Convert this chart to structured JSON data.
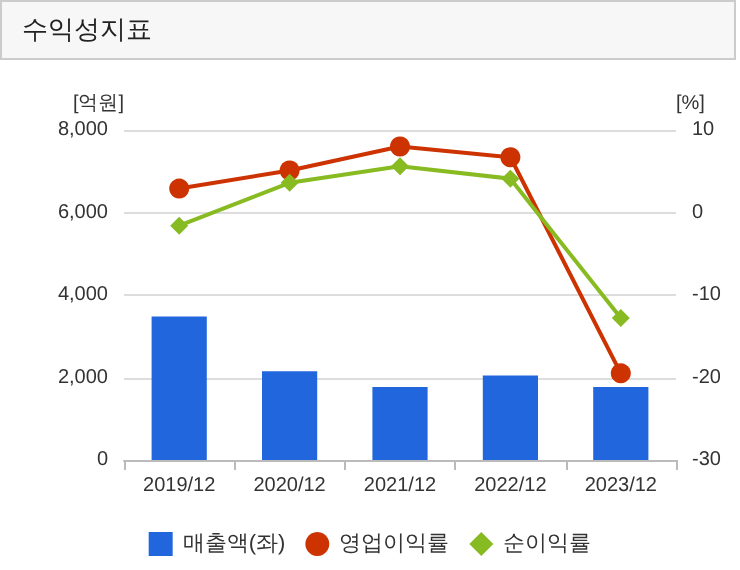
{
  "chart_data": {
    "type": "bar",
    "title": "수익성지표",
    "ylabel": "[억원]",
    "y2label": "[%]",
    "categories": [
      "2019/12",
      "2020/12",
      "2021/12",
      "2022/12",
      "2023/12"
    ],
    "series": [
      {
        "name": "매출액(좌)",
        "color": "#2266dd",
        "values": [
          3480,
          2150,
          1770,
          2050,
          1770
        ]
      },
      {
        "name": "영업이익률",
        "type": "line",
        "axis": "y2",
        "marker": "circle",
        "color": "#cc3300",
        "values": [
          2.9,
          5.1,
          8.0,
          6.7,
          -19.5
        ]
      },
      {
        "name": "순이익률",
        "type": "line",
        "axis": "y2",
        "marker": "diamond",
        "color": "#88bb22",
        "values": [
          -1.6,
          3.6,
          5.6,
          4.1,
          -12.8
        ]
      }
    ],
    "ylim": [
      0,
      8000
    ],
    "yticks": [
      {
        "value": 0,
        "label": "0"
      },
      {
        "value": 2000,
        "label": "2,000"
      },
      {
        "value": 4000,
        "label": "4,000"
      },
      {
        "value": 6000,
        "label": "6,000"
      },
      {
        "value": 8000,
        "label": "8,000"
      }
    ],
    "y2lim": [
      -30,
      10
    ],
    "y2ticks": [
      -30,
      -20,
      -10,
      0,
      10
    ],
    "grid": "y",
    "legend": "bottom"
  }
}
